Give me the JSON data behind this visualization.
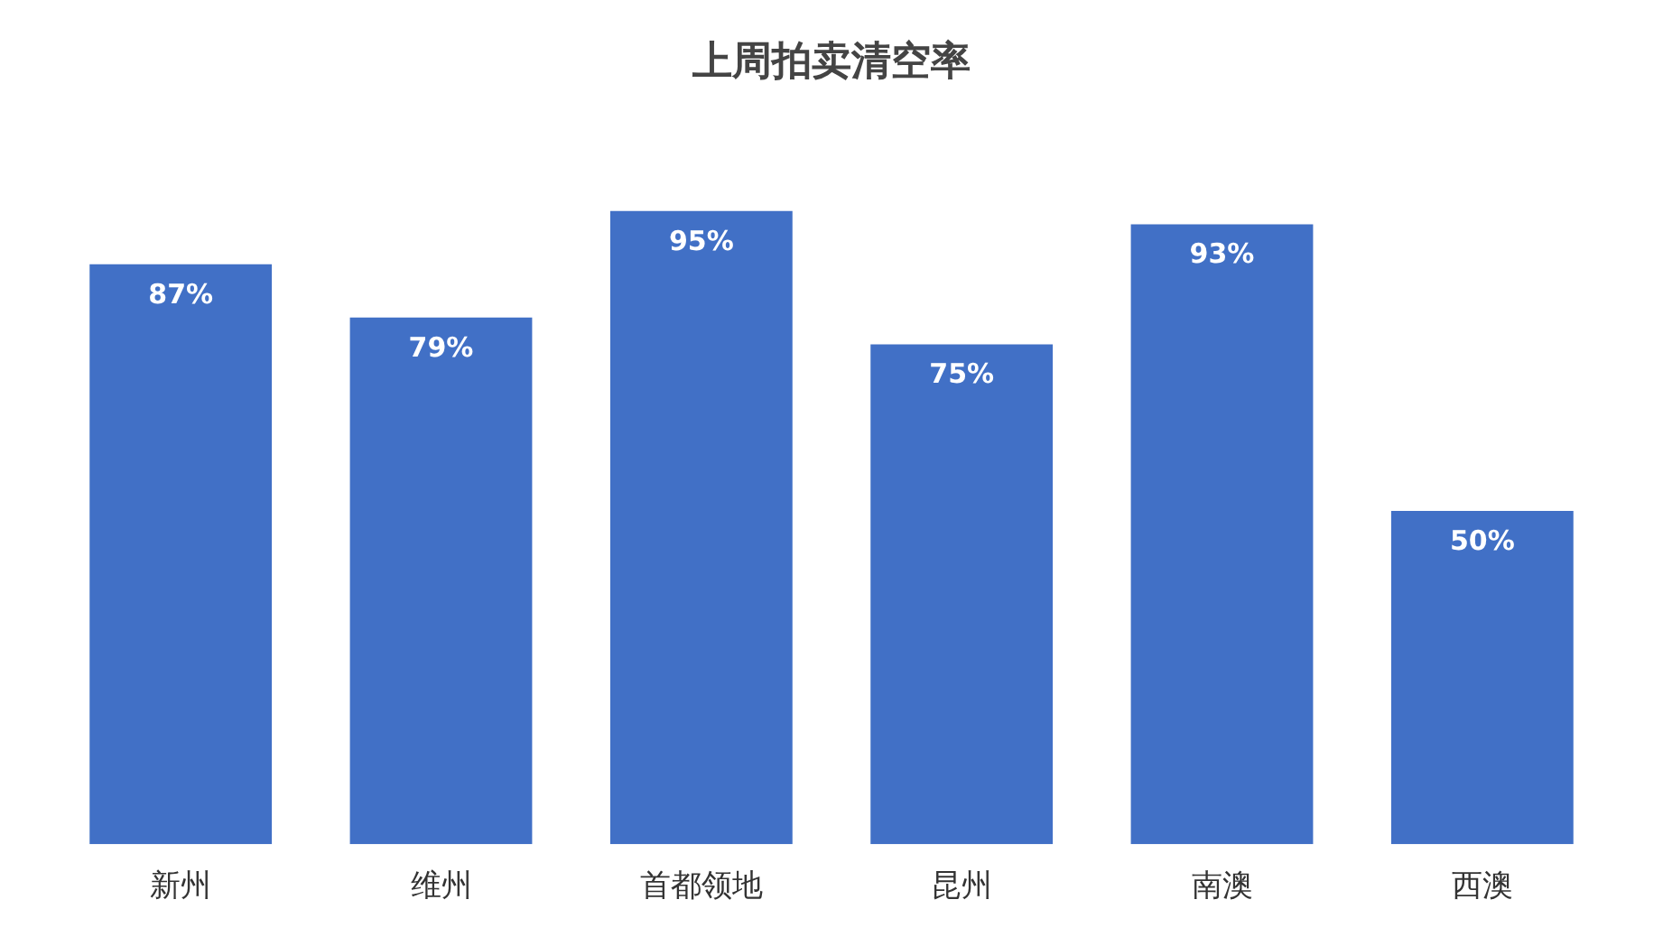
{
  "chart_data": {
    "type": "bar",
    "title": "上周拍卖清空率",
    "categories": [
      "新州",
      "维州",
      "首都领地",
      "昆州",
      "南澳",
      "西澳"
    ],
    "values": [
      87,
      79,
      95,
      75,
      93,
      50
    ],
    "value_labels": [
      "87%",
      "79%",
      "95%",
      "75%",
      "93%",
      "50%"
    ],
    "color": "#4170c6",
    "grid": false,
    "legend": false
  }
}
